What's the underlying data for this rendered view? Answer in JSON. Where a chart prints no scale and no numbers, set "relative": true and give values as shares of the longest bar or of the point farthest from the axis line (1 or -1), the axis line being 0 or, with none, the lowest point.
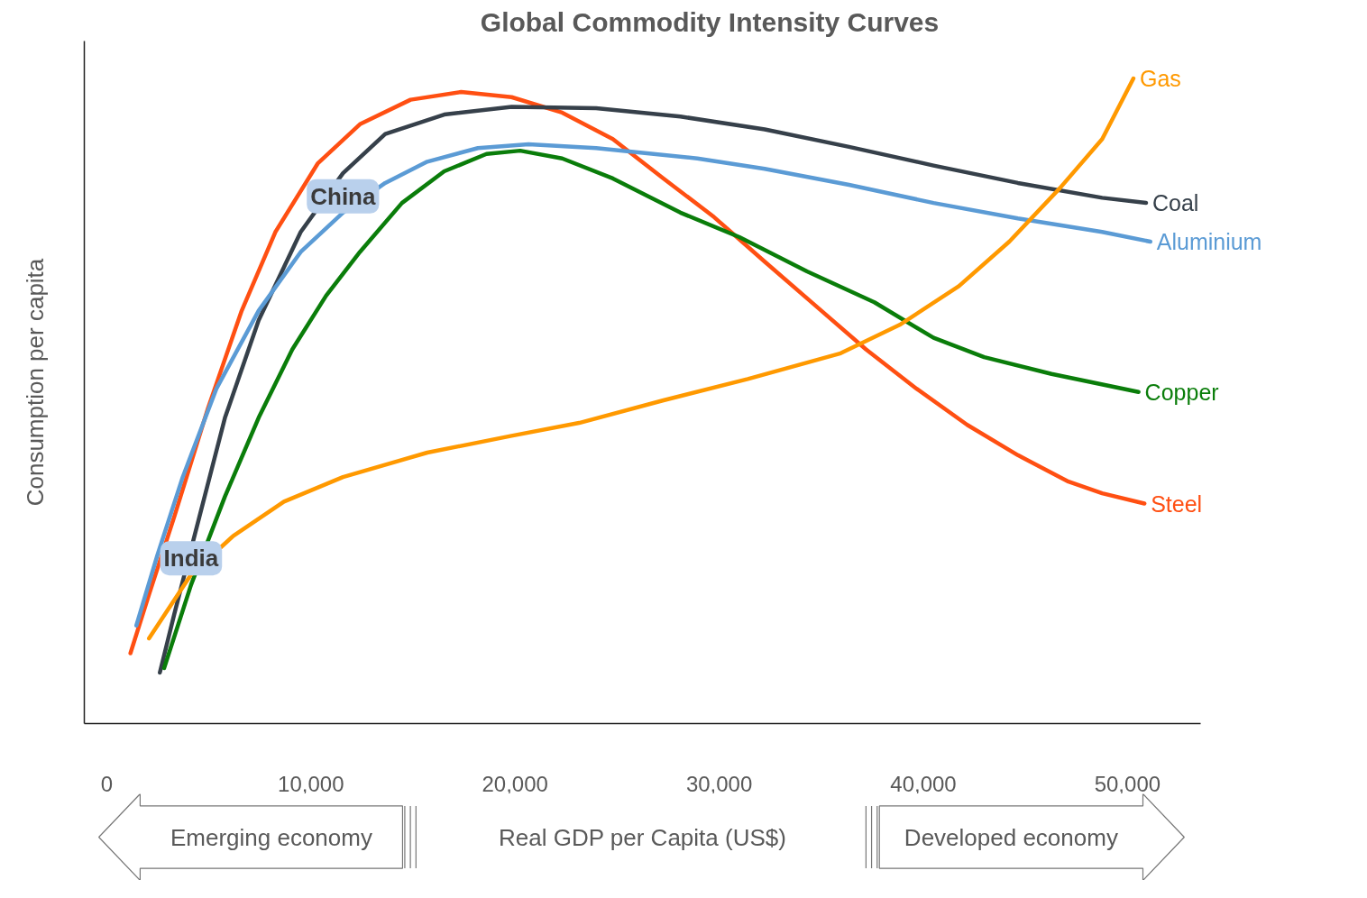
{
  "chart_data": {
    "type": "line",
    "title": "Global Commodity Intensity Curves",
    "xlabel": "Real GDP per Capita (US$)",
    "ylabel": "Consumption per capita",
    "relative": true,
    "xlim": [
      -1100,
      53600
    ],
    "xticks": [
      0,
      {
        "value": 10000,
        "label": "10,000"
      },
      {
        "value": 20000,
        "label": "20,000"
      },
      {
        "value": 30000,
        "label": "30,000"
      },
      {
        "value": 40000,
        "label": "40,000"
      },
      {
        "value": 50000,
        "label": "50,000"
      }
    ],
    "grid": false,
    "line_style": "solid",
    "series": [
      {
        "name": "Steel",
        "color": "#ff4f12",
        "x": [
          1160,
          2070,
          3310,
          4960,
          6610,
          8260,
          10330,
          12400,
          14880,
          17360,
          19830,
          22310,
          24790,
          27270,
          29750,
          32230,
          34710,
          37190,
          39670,
          42150,
          44630,
          47110,
          48760,
          50830
        ],
        "values": [
          0.109,
          0.2,
          0.321,
          0.489,
          0.64,
          0.762,
          0.868,
          0.929,
          0.967,
          0.979,
          0.971,
          0.947,
          0.906,
          0.845,
          0.785,
          0.716,
          0.648,
          0.58,
          0.519,
          0.463,
          0.416,
          0.375,
          0.357,
          0.341
        ]
      },
      {
        "name": "Coal",
        "color": "#36404a",
        "x": [
          2600,
          3310,
          4550,
          5790,
          7440,
          9500,
          11570,
          13640,
          16530,
          19830,
          23970,
          28100,
          32230,
          36360,
          40500,
          44630,
          48760,
          50910
        ],
        "values": [
          0.079,
          0.17,
          0.322,
          0.474,
          0.625,
          0.762,
          0.853,
          0.914,
          0.944,
          0.956,
          0.954,
          0.941,
          0.921,
          0.894,
          0.865,
          0.838,
          0.815,
          0.807
        ]
      },
      {
        "name": "Aluminium",
        "color": "#5b9bd5",
        "x": [
          1450,
          2480,
          3720,
          5370,
          7440,
          9500,
          11570,
          13640,
          15700,
          18180,
          20660,
          23970,
          28930,
          32230,
          36360,
          40500,
          44630,
          48760,
          51120
        ],
        "values": [
          0.152,
          0.261,
          0.382,
          0.519,
          0.64,
          0.731,
          0.792,
          0.838,
          0.871,
          0.892,
          0.898,
          0.892,
          0.876,
          0.86,
          0.835,
          0.807,
          0.783,
          0.762,
          0.747
        ]
      },
      {
        "name": "Copper",
        "color": "#0a7d0a",
        "x": [
          2810,
          4130,
          5790,
          7440,
          9090,
          10740,
          12400,
          14460,
          16530,
          18600,
          20250,
          22310,
          24790,
          28100,
          30990,
          34300,
          37600,
          40500,
          42980,
          46280,
          50540
        ],
        "values": [
          0.086,
          0.215,
          0.352,
          0.474,
          0.58,
          0.663,
          0.731,
          0.807,
          0.856,
          0.883,
          0.888,
          0.876,
          0.845,
          0.792,
          0.754,
          0.701,
          0.653,
          0.598,
          0.568,
          0.542,
          0.514
        ]
      },
      {
        "name": "Gas",
        "color": "#ff9900",
        "x": [
          2070,
          4130,
          6200,
          8680,
          11570,
          15700,
          19830,
          23140,
          27270,
          31400,
          35950,
          38840,
          41740,
          44210,
          46690,
          48760,
          50290
        ],
        "values": [
          0.132,
          0.231,
          0.291,
          0.344,
          0.382,
          0.42,
          0.446,
          0.466,
          0.501,
          0.534,
          0.574,
          0.618,
          0.678,
          0.747,
          0.83,
          0.906,
          1.0
        ]
      }
    ],
    "annotations": [
      {
        "text": "China",
        "x": 11570,
        "y": 0.792
      },
      {
        "text": "India",
        "x": 4130,
        "y": 0.231
      },
      "Emerging economy",
      "Developed economy"
    ]
  }
}
